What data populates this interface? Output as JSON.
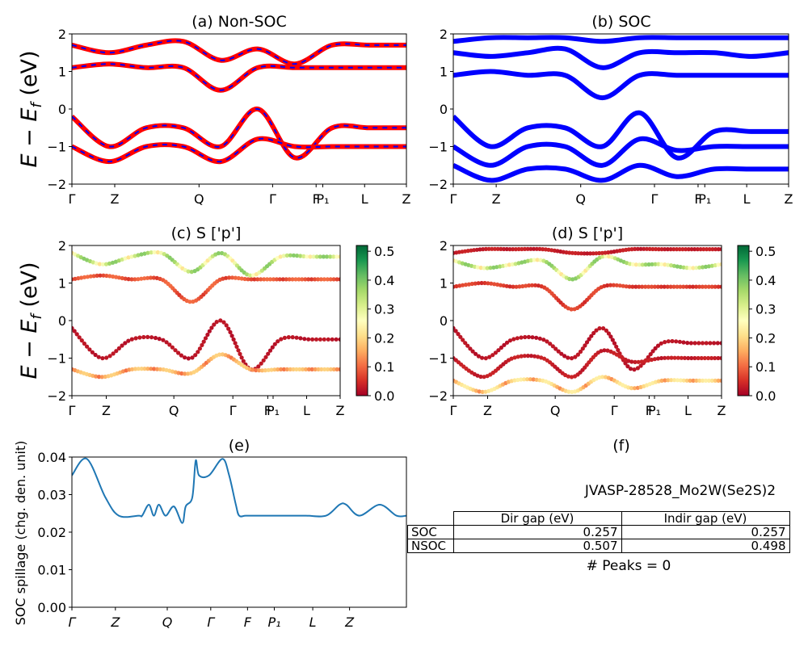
{
  "colors": {
    "nonsoc_primary": "#ff0000",
    "nonsoc_overlay": "#0000ff",
    "soc": "#0000ff",
    "spillage": "#1f77b4",
    "colormap": "RdYlGn"
  },
  "common": {
    "energy_ylabel": "E − E_f (eV)",
    "energy_ylim": [
      -2,
      2
    ],
    "energy_yticks": [
      "2",
      "1",
      "0",
      "−1",
      "−2"
    ],
    "colorbar_ticks": [
      "0.5",
      "0.4",
      "0.3",
      "0.2",
      "0.1",
      "0.0"
    ],
    "colorbar_range": [
      0.0,
      0.52
    ]
  },
  "chart_data": [
    {
      "id": "a",
      "type": "line",
      "title": "(a) Non-SOC",
      "ylabel": "E − E_f (eV)",
      "ylim": [
        -2,
        2
      ],
      "xticks": [
        "Γ",
        "Z",
        "Q",
        "Γ",
        "F",
        "P₁",
        "L",
        "Z"
      ],
      "series": [
        {
          "band": "c1",
          "values": [
            1.1,
            1.2,
            1.1,
            1.1,
            0.5,
            1.1,
            1.1,
            1.1,
            1.1,
            1.1
          ]
        },
        {
          "band": "c2",
          "values": [
            1.7,
            1.5,
            1.7,
            1.8,
            1.3,
            1.6,
            1.2,
            1.7,
            1.7,
            1.7
          ]
        },
        {
          "band": "v1",
          "values": [
            -0.2,
            -1.0,
            -0.5,
            -0.5,
            -1.0,
            0.0,
            -1.3,
            -0.5,
            -0.5,
            -0.5
          ]
        },
        {
          "band": "v2",
          "values": [
            -1.0,
            -1.4,
            -1.0,
            -1.0,
            -1.4,
            -0.8,
            -1.0,
            -1.0,
            -1.0,
            -1.0
          ]
        }
      ]
    },
    {
      "id": "b",
      "type": "line",
      "title": "(b) SOC",
      "ylim": [
        -2,
        2
      ],
      "xticks": [
        "Γ",
        "Z",
        "Q",
        "Γ",
        "F",
        "P₁",
        "L",
        "Z"
      ],
      "series": [
        {
          "band": "c1",
          "values": [
            0.9,
            1.0,
            0.9,
            0.9,
            0.3,
            0.9,
            0.9,
            0.9,
            0.9,
            0.9
          ]
        },
        {
          "band": "c2",
          "values": [
            1.5,
            1.4,
            1.5,
            1.6,
            1.1,
            1.5,
            1.5,
            1.5,
            1.4,
            1.5
          ]
        },
        {
          "band": "c3",
          "values": [
            1.8,
            1.9,
            1.9,
            1.9,
            1.8,
            1.9,
            1.9,
            1.9,
            1.9,
            1.9
          ]
        },
        {
          "band": "v1",
          "values": [
            -0.2,
            -1.0,
            -0.5,
            -0.5,
            -1.0,
            -0.1,
            -1.3,
            -0.6,
            -0.6,
            -0.6
          ]
        },
        {
          "band": "v2",
          "values": [
            -1.0,
            -1.5,
            -1.0,
            -1.0,
            -1.5,
            -0.8,
            -1.1,
            -1.0,
            -1.0,
            -1.0
          ]
        },
        {
          "band": "v3",
          "values": [
            -1.5,
            -1.9,
            -1.6,
            -1.6,
            -1.9,
            -1.5,
            -1.8,
            -1.6,
            -1.6,
            -1.6
          ]
        }
      ]
    },
    {
      "id": "c",
      "type": "scatter",
      "title": "(c)  S ['p']",
      "ylabel": "E − E_f (eV)",
      "ylim": [
        -2,
        2
      ],
      "xticks": [
        "Γ",
        "Z",
        "Q",
        "Γ",
        "F",
        "P₁",
        "L",
        "Z"
      ],
      "colorbar": "RdYlGn",
      "clim": [
        0.0,
        0.52
      ],
      "series": [
        {
          "band": "c1",
          "weight": 0.08,
          "values": [
            1.1,
            1.2,
            1.1,
            1.1,
            0.5,
            1.1,
            1.1,
            1.1,
            1.1,
            1.1
          ]
        },
        {
          "band": "c2",
          "weight": 0.3,
          "values": [
            1.8,
            1.5,
            1.7,
            1.8,
            1.3,
            1.8,
            1.2,
            1.7,
            1.7,
            1.7
          ]
        },
        {
          "band": "v1",
          "weight": 0.02,
          "values": [
            -0.2,
            -1.0,
            -0.5,
            -0.5,
            -1.0,
            0.0,
            -1.3,
            -0.5,
            -0.5,
            -0.5
          ]
        },
        {
          "band": "v2",
          "weight": 0.15,
          "values": [
            -1.3,
            -1.5,
            -1.3,
            -1.3,
            -1.4,
            -0.9,
            -1.3,
            -1.3,
            -1.3,
            -1.3
          ]
        }
      ]
    },
    {
      "id": "d",
      "type": "scatter",
      "title": "(d) S ['p']",
      "ylim": [
        -2,
        2
      ],
      "xticks": [
        "Γ",
        "Z",
        "Q",
        "Γ",
        "F",
        "P₁",
        "L",
        "Z"
      ],
      "colorbar": "RdYlGn",
      "clim": [
        0.0,
        0.52
      ],
      "series": [
        {
          "band": "c1",
          "weight": 0.06,
          "values": [
            0.9,
            1.0,
            0.9,
            0.9,
            0.3,
            0.9,
            0.9,
            0.9,
            0.9,
            0.9
          ]
        },
        {
          "band": "c2",
          "weight": 0.3,
          "values": [
            1.6,
            1.4,
            1.5,
            1.6,
            1.1,
            1.7,
            1.5,
            1.5,
            1.4,
            1.5
          ]
        },
        {
          "band": "c3",
          "weight": 0.03,
          "values": [
            1.8,
            1.9,
            1.9,
            1.9,
            1.8,
            1.8,
            1.9,
            1.9,
            1.9,
            1.9
          ]
        },
        {
          "band": "v1",
          "weight": 0.02,
          "values": [
            -0.2,
            -1.0,
            -0.5,
            -0.5,
            -1.0,
            -0.2,
            -1.3,
            -0.6,
            -0.6,
            -0.6
          ]
        },
        {
          "band": "v2",
          "weight": 0.03,
          "values": [
            -1.0,
            -1.5,
            -1.0,
            -1.0,
            -1.5,
            -0.8,
            -1.1,
            -1.0,
            -1.0,
            -1.0
          ]
        },
        {
          "band": "v3",
          "weight": 0.18,
          "values": [
            -1.6,
            -1.9,
            -1.6,
            -1.6,
            -1.9,
            -1.5,
            -1.8,
            -1.6,
            -1.6,
            -1.6
          ]
        }
      ]
    },
    {
      "id": "e",
      "type": "line",
      "title": "(e)",
      "ylabel": "SOC spillage (chg. den. unit)",
      "ylim": [
        0.0,
        0.041
      ],
      "yticks": [
        "0.04",
        "0.03",
        "0.02",
        "0.01",
        "0.00"
      ],
      "xticks": [
        "Γ",
        "Z",
        "Q",
        "Γ",
        "F",
        "P₁",
        "L",
        "Z"
      ],
      "x": [
        0,
        0.045,
        0.1,
        0.14,
        0.2,
        0.21,
        0.23,
        0.245,
        0.26,
        0.28,
        0.305,
        0.33,
        0.34,
        0.36,
        0.37,
        0.38,
        0.41,
        0.45,
        0.47,
        0.49,
        0.5,
        0.52,
        0.56,
        0.58,
        0.6,
        0.64,
        0.7,
        0.76,
        0.8,
        0.82,
        0.86,
        0.92,
        0.97,
        1.0
      ],
      "values": [
        0.036,
        0.0405,
        0.03,
        0.025,
        0.025,
        0.025,
        0.028,
        0.025,
        0.028,
        0.025,
        0.0275,
        0.023,
        0.0275,
        0.03,
        0.04,
        0.036,
        0.036,
        0.0405,
        0.036,
        0.028,
        0.025,
        0.025,
        0.025,
        0.025,
        0.025,
        0.025,
        0.025,
        0.025,
        0.028,
        0.028,
        0.025,
        0.028,
        0.025,
        0.025
      ]
    }
  ],
  "panel_f": {
    "title": "(f)",
    "material": "JVASP-28528_Mo2W(Se2S)2",
    "table": {
      "headers": [
        "Dir gap (eV)",
        "Indir gap (eV)"
      ],
      "rows": [
        {
          "label": "SOC",
          "dir": "0.257",
          "indir": "0.257"
        },
        {
          "label": "NSOC",
          "dir": "0.507",
          "indir": "0.498"
        }
      ]
    },
    "peaks": "# Peaks = 0"
  }
}
